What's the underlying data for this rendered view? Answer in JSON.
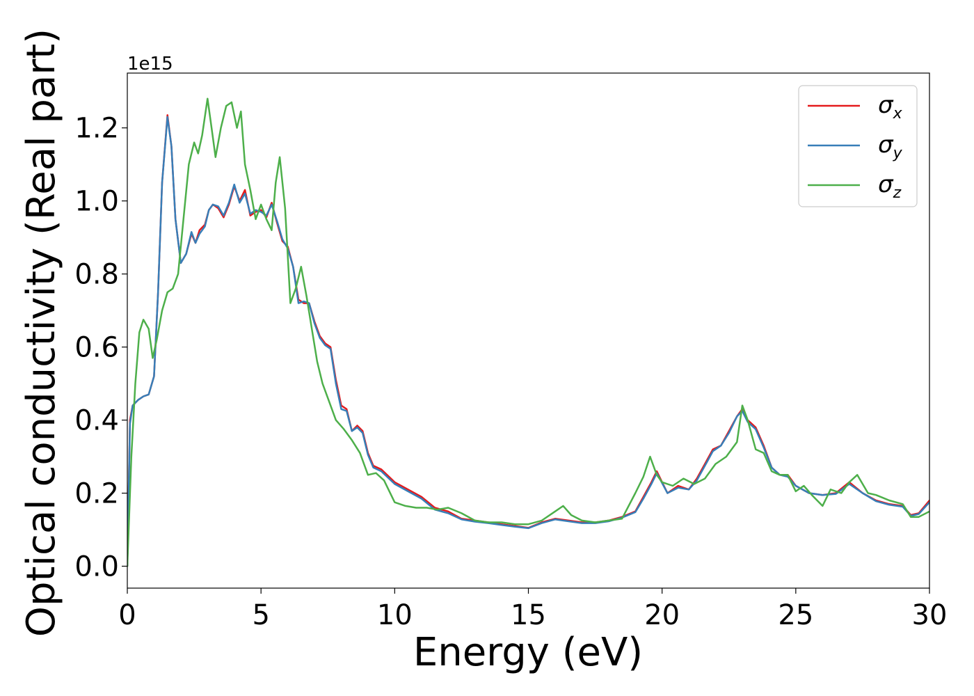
{
  "chart_data": {
    "type": "line",
    "xlabel": "Energy (eV)",
    "ylabel": "Optical conductivity (Real part)",
    "y_offset_text": "1e15",
    "xlim": [
      0,
      30
    ],
    "ylim": [
      -0.06,
      1.35
    ],
    "xticks": [
      0,
      5,
      10,
      15,
      20,
      25,
      30
    ],
    "yticks": [
      0.0,
      0.2,
      0.4,
      0.6,
      0.8,
      1.0,
      1.2
    ],
    "xtick_labels": [
      "0",
      "5",
      "10",
      "15",
      "20",
      "25",
      "30"
    ],
    "ytick_labels": [
      "0.0",
      "0.2",
      "0.4",
      "0.6",
      "0.8",
      "1.0",
      "1.2"
    ],
    "grid": false,
    "legend": {
      "position": "top-right",
      "entries": [
        {
          "symbol": "σ",
          "sub": "x"
        },
        {
          "symbol": "σ",
          "sub": "y"
        },
        {
          "symbol": "σ",
          "sub": "z"
        }
      ]
    },
    "series": [
      {
        "color": "#e41a1c",
        "x": [
          0,
          0.1,
          0.2,
          0.4,
          0.6,
          0.8,
          1.0,
          1.15,
          1.3,
          1.5,
          1.65,
          1.8,
          2.0,
          2.2,
          2.4,
          2.55,
          2.7,
          2.9,
          3.05,
          3.2,
          3.4,
          3.6,
          3.8,
          4.0,
          4.2,
          4.4,
          4.6,
          4.8,
          5.0,
          5.2,
          5.4,
          5.6,
          5.8,
          6.0,
          6.2,
          6.4,
          6.6,
          6.8,
          7.0,
          7.2,
          7.4,
          7.6,
          7.8,
          8.0,
          8.2,
          8.4,
          8.6,
          8.8,
          9.0,
          9.2,
          9.5,
          10.0,
          10.5,
          11.0,
          11.5,
          12.0,
          12.5,
          13.0,
          13.5,
          14.0,
          14.5,
          15.0,
          15.5,
          16.0,
          16.5,
          17.0,
          17.5,
          18.0,
          18.5,
          19.0,
          19.3,
          19.6,
          19.8,
          20.2,
          20.6,
          21.0,
          21.3,
          21.6,
          21.9,
          22.2,
          22.5,
          22.8,
          23.0,
          23.2,
          23.5,
          23.8,
          24.1,
          24.4,
          24.7,
          25.0,
          25.5,
          26.0,
          26.5,
          27.0,
          27.5,
          28.0,
          28.5,
          29.0,
          29.3,
          29.6,
          30.0
        ],
        "y": [
          0.0,
          0.4,
          0.44,
          0.455,
          0.465,
          0.47,
          0.52,
          0.75,
          1.05,
          1.235,
          1.15,
          0.95,
          0.83,
          0.855,
          0.91,
          0.885,
          0.92,
          0.935,
          0.975,
          0.99,
          0.98,
          0.955,
          0.99,
          1.04,
          1.0,
          1.03,
          0.96,
          0.97,
          0.975,
          0.955,
          0.995,
          0.94,
          0.89,
          0.875,
          0.82,
          0.73,
          0.72,
          0.72,
          0.67,
          0.63,
          0.61,
          0.6,
          0.51,
          0.44,
          0.43,
          0.37,
          0.385,
          0.37,
          0.31,
          0.275,
          0.265,
          0.23,
          0.21,
          0.19,
          0.16,
          0.15,
          0.13,
          0.125,
          0.12,
          0.115,
          0.11,
          0.105,
          0.12,
          0.13,
          0.125,
          0.12,
          0.12,
          0.125,
          0.135,
          0.15,
          0.19,
          0.23,
          0.26,
          0.2,
          0.22,
          0.21,
          0.24,
          0.28,
          0.32,
          0.33,
          0.37,
          0.41,
          0.43,
          0.4,
          0.38,
          0.33,
          0.27,
          0.25,
          0.25,
          0.22,
          0.2,
          0.195,
          0.2,
          0.23,
          0.2,
          0.18,
          0.17,
          0.165,
          0.14,
          0.145,
          0.18
        ]
      },
      {
        "color": "#377eb8",
        "x": [
          0,
          0.1,
          0.2,
          0.4,
          0.6,
          0.8,
          1.0,
          1.15,
          1.3,
          1.5,
          1.65,
          1.8,
          2.0,
          2.2,
          2.4,
          2.55,
          2.7,
          2.9,
          3.05,
          3.2,
          3.4,
          3.6,
          3.8,
          4.0,
          4.2,
          4.4,
          4.6,
          4.8,
          5.0,
          5.2,
          5.4,
          5.6,
          5.8,
          6.0,
          6.2,
          6.4,
          6.6,
          6.8,
          7.0,
          7.2,
          7.4,
          7.6,
          7.8,
          8.0,
          8.2,
          8.4,
          8.6,
          8.8,
          9.0,
          9.2,
          9.5,
          10.0,
          10.5,
          11.0,
          11.5,
          12.0,
          12.5,
          13.0,
          13.5,
          14.0,
          14.5,
          15.0,
          15.5,
          16.0,
          16.5,
          17.0,
          17.5,
          18.0,
          18.5,
          19.0,
          19.3,
          19.6,
          19.8,
          20.2,
          20.6,
          21.0,
          21.3,
          21.6,
          21.9,
          22.2,
          22.5,
          22.8,
          23.0,
          23.2,
          23.5,
          23.8,
          24.1,
          24.4,
          24.7,
          25.0,
          25.5,
          26.0,
          26.5,
          27.0,
          27.5,
          28.0,
          28.5,
          29.0,
          29.3,
          29.6,
          30.0
        ],
        "y": [
          0.0,
          0.39,
          0.44,
          0.455,
          0.465,
          0.47,
          0.52,
          0.75,
          1.05,
          1.23,
          1.15,
          0.95,
          0.83,
          0.855,
          0.915,
          0.885,
          0.91,
          0.93,
          0.975,
          0.99,
          0.985,
          0.96,
          0.995,
          1.045,
          0.995,
          1.02,
          0.965,
          0.975,
          0.97,
          0.96,
          0.99,
          0.945,
          0.895,
          0.87,
          0.82,
          0.72,
          0.725,
          0.72,
          0.665,
          0.625,
          0.605,
          0.595,
          0.5,
          0.43,
          0.425,
          0.37,
          0.38,
          0.365,
          0.305,
          0.27,
          0.26,
          0.225,
          0.205,
          0.185,
          0.155,
          0.145,
          0.128,
          0.122,
          0.118,
          0.113,
          0.108,
          0.104,
          0.118,
          0.128,
          0.123,
          0.118,
          0.118,
          0.123,
          0.133,
          0.148,
          0.185,
          0.225,
          0.255,
          0.2,
          0.215,
          0.21,
          0.235,
          0.275,
          0.315,
          0.33,
          0.365,
          0.41,
          0.425,
          0.395,
          0.375,
          0.325,
          0.27,
          0.25,
          0.245,
          0.22,
          0.2,
          0.195,
          0.198,
          0.225,
          0.2,
          0.178,
          0.168,
          0.163,
          0.138,
          0.143,
          0.175
        ]
      },
      {
        "color": "#4daf4a",
        "x": [
          0,
          0.15,
          0.3,
          0.45,
          0.6,
          0.8,
          0.95,
          1.1,
          1.3,
          1.5,
          1.7,
          1.9,
          2.1,
          2.3,
          2.5,
          2.65,
          2.8,
          3.0,
          3.15,
          3.3,
          3.5,
          3.7,
          3.9,
          4.1,
          4.25,
          4.4,
          4.6,
          4.8,
          5.0,
          5.2,
          5.4,
          5.55,
          5.7,
          5.9,
          6.1,
          6.3,
          6.5,
          6.7,
          6.9,
          7.1,
          7.3,
          7.5,
          7.8,
          8.1,
          8.4,
          8.7,
          9.0,
          9.3,
          9.6,
          10.0,
          10.4,
          10.8,
          11.2,
          11.6,
          12.0,
          12.5,
          13.0,
          13.5,
          14.0,
          14.5,
          15.0,
          15.5,
          16.0,
          16.3,
          16.6,
          17.0,
          17.5,
          18.0,
          18.5,
          19.0,
          19.3,
          19.55,
          19.8,
          20.0,
          20.4,
          20.8,
          21.2,
          21.6,
          22.0,
          22.4,
          22.8,
          23.0,
          23.2,
          23.5,
          23.8,
          24.1,
          24.4,
          24.7,
          25.0,
          25.3,
          25.6,
          26.0,
          26.3,
          26.7,
          27.0,
          27.3,
          27.7,
          28.0,
          28.5,
          29.0,
          29.3,
          29.6,
          30.0
        ],
        "y": [
          0.0,
          0.3,
          0.5,
          0.64,
          0.675,
          0.65,
          0.57,
          0.62,
          0.7,
          0.75,
          0.76,
          0.8,
          0.95,
          1.1,
          1.16,
          1.13,
          1.18,
          1.28,
          1.2,
          1.12,
          1.2,
          1.26,
          1.27,
          1.2,
          1.245,
          1.1,
          1.03,
          0.95,
          0.99,
          0.95,
          0.92,
          1.05,
          1.12,
          0.98,
          0.72,
          0.76,
          0.82,
          0.74,
          0.65,
          0.56,
          0.5,
          0.46,
          0.4,
          0.375,
          0.345,
          0.31,
          0.25,
          0.255,
          0.235,
          0.175,
          0.165,
          0.16,
          0.16,
          0.155,
          0.16,
          0.145,
          0.125,
          0.12,
          0.12,
          0.115,
          0.115,
          0.125,
          0.15,
          0.165,
          0.14,
          0.125,
          0.12,
          0.125,
          0.13,
          0.2,
          0.245,
          0.3,
          0.25,
          0.23,
          0.22,
          0.24,
          0.225,
          0.24,
          0.28,
          0.3,
          0.34,
          0.44,
          0.4,
          0.32,
          0.31,
          0.26,
          0.25,
          0.25,
          0.205,
          0.22,
          0.195,
          0.165,
          0.21,
          0.2,
          0.23,
          0.25,
          0.2,
          0.195,
          0.18,
          0.17,
          0.135,
          0.135,
          0.15
        ]
      }
    ]
  }
}
